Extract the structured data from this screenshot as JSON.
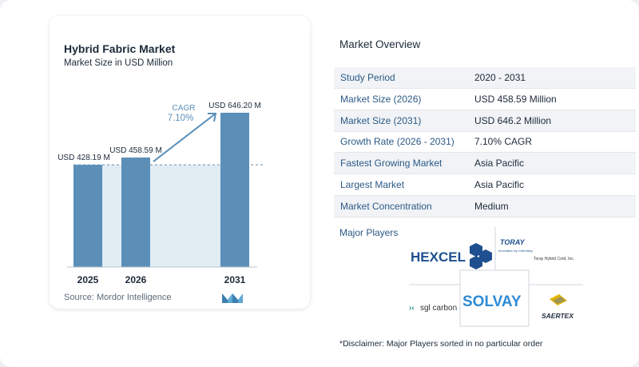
{
  "chart": {
    "title": "Hybrid Fabric Market",
    "subtitle": "Market Size in USD Million",
    "source": "Source:  Mordor Intelligence",
    "cagr_label": "CAGR",
    "cagr_value": "7.10%"
  },
  "chart_data": {
    "type": "bar",
    "title": "Hybrid Fabric Market",
    "subtitle": "Market Size in USD Million",
    "categories": [
      "2025",
      "2026",
      "2031"
    ],
    "values": [
      428.19,
      458.59,
      646.2
    ],
    "data_labels": [
      "USD 428.19 M",
      "USD 458.59 M",
      "USD 646.20 M"
    ],
    "ylim": [
      0,
      700
    ],
    "grid": false,
    "reference_line_value": 428.19,
    "annotation": "CAGR 7.10%",
    "colors": {
      "bar": "#5b8fb8",
      "bar_light": "#a8c8df",
      "shade": "#e2ecf3",
      "arrow": "#5b8fb8"
    }
  },
  "overview": {
    "title": "Market Overview",
    "rows": [
      {
        "label": "Study Period",
        "value": "2020 - 2031"
      },
      {
        "label": "Market Size (2026)",
        "value": "USD 458.59 Million"
      },
      {
        "label": "Market Size (2031)",
        "value": "USD 646.2 Million"
      },
      {
        "label": "Growth Rate (2026 - 2031)",
        "value": "7.10% CAGR"
      },
      {
        "label": "Fastest Growing Market",
        "value": "Asia Pacific"
      },
      {
        "label": "Largest Market",
        "value": "Asia Pacific"
      },
      {
        "label": "Market Concentration",
        "value": "Medium"
      }
    ]
  },
  "players": {
    "title": "Major Players",
    "logos": [
      "HEXCEL",
      "TORAY",
      "Innovation by Chemistry",
      "Toray Hybrid Cord, Inc.",
      "sgl carbon",
      "SOLVAY",
      "SAERTEX"
    ]
  },
  "disclaimer": "*Disclaimer: Major Players sorted in no particular order"
}
